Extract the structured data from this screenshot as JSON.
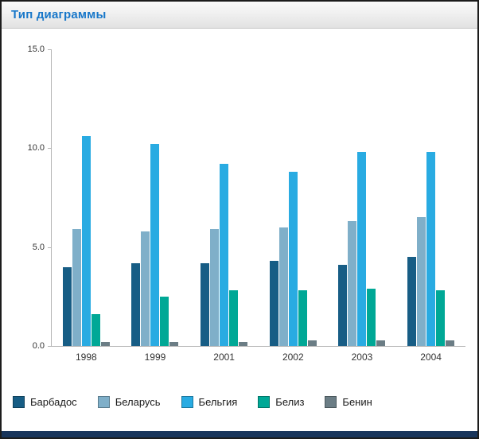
{
  "window": {
    "title": "Тип диаграммы"
  },
  "colors": {
    "title": "#1877C9",
    "footer_bar": "#18355B",
    "axis": "#B4B4B4"
  },
  "chart_data": {
    "type": "bar",
    "title": "",
    "categories": [
      "1998",
      "1999",
      "2001",
      "2002",
      "2003",
      "2004"
    ],
    "series": [
      {
        "name": "Барбадос",
        "color": "#175D85",
        "values": [
          4.0,
          4.2,
          4.2,
          4.3,
          4.1,
          4.5
        ]
      },
      {
        "name": "Беларусь",
        "color": "#7FAFC9",
        "values": [
          5.9,
          5.8,
          5.9,
          6.0,
          6.3,
          6.5
        ]
      },
      {
        "name": "Бельгия",
        "color": "#29ABE2",
        "values": [
          10.6,
          10.2,
          9.2,
          8.8,
          9.8,
          9.8
        ]
      },
      {
        "name": "Белиз",
        "color": "#00A896",
        "values": [
          1.6,
          2.5,
          2.8,
          2.8,
          2.9,
          2.8
        ]
      },
      {
        "name": "Бенин",
        "color": "#6B7D85",
        "values": [
          0.2,
          0.2,
          0.2,
          0.3,
          0.3,
          0.3
        ]
      }
    ],
    "ylim": [
      0,
      15
    ],
    "yticks": [
      "15.0",
      "10.0",
      "5.0",
      "0.0"
    ],
    "xlabel": "",
    "ylabel": "",
    "grid": false,
    "legend_position": "bottom"
  }
}
